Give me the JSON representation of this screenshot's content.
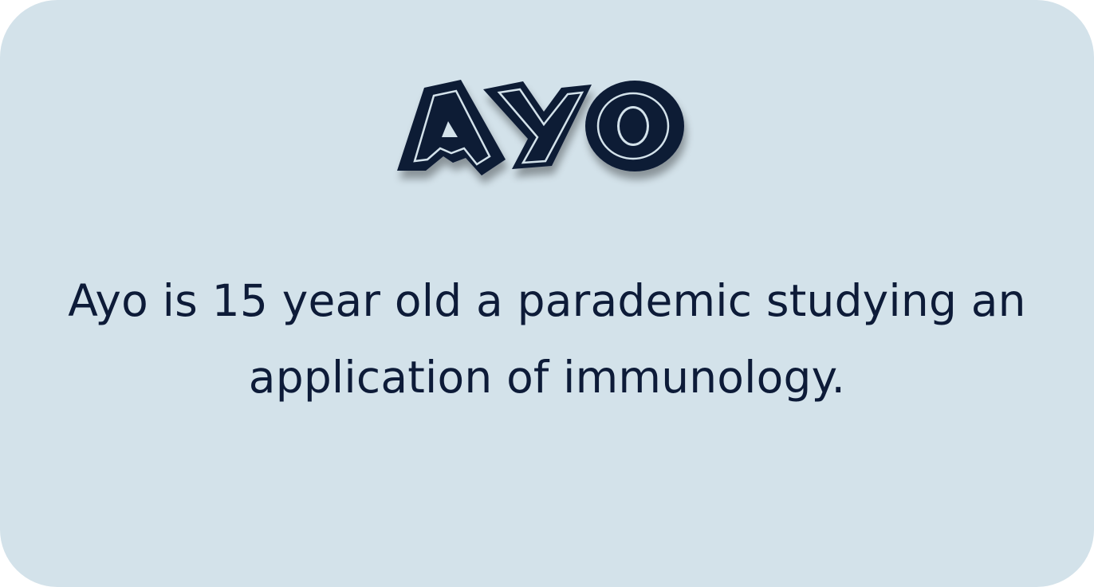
{
  "logo": {
    "text": "AYO",
    "fill_color": "#0c1a36",
    "outline_color": "#d3e2ea"
  },
  "bio": {
    "text": "Ayo is 15 year old a parademic studying an application of immunology."
  },
  "colors": {
    "card_background": "#d3e2ea",
    "text": "#0d1b38"
  }
}
